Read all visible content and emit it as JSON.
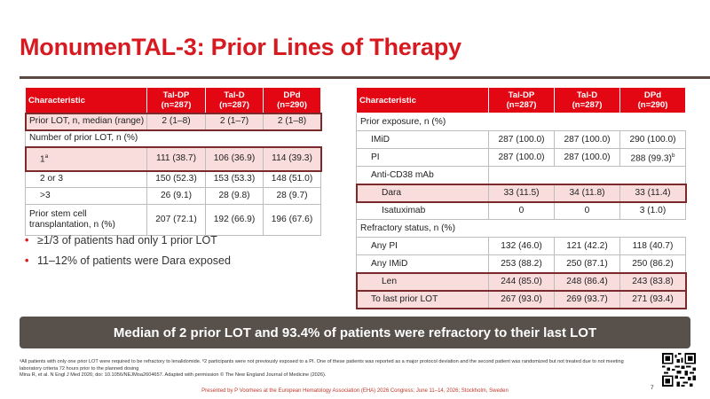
{
  "title": "MonumenTAL-3: Prior Lines of Therapy",
  "left_table": {
    "headers": [
      "Characteristic",
      "Tal-DP\n(n=287)",
      "Tal-D\n(n=287)",
      "DPd\n(n=290)"
    ],
    "rows": [
      {
        "label": "Prior LOT, n, median (range)",
        "values": [
          "2 (1–8)",
          "2 (1–7)",
          "2 (1–8)"
        ]
      },
      {
        "label": "Number of prior LOT, n (%)"
      },
      {
        "label": "1",
        "sup": "a",
        "values": [
          "111 (38.7)",
          "106 (36.9)",
          "114 (39.3)"
        ]
      },
      {
        "label": "2 or 3",
        "values": [
          "150 (52.3)",
          "153 (53.3)",
          "148 (51.0)"
        ]
      },
      {
        "label": ">3",
        "values": [
          "26 (9.1)",
          "28 (9.8)",
          "28 (9.7)"
        ]
      },
      {
        "label": "Prior stem cell\ntransplantation, n (%)",
        "values": [
          "207 (72.1)",
          "192 (66.9)",
          "196 (67.6)"
        ]
      }
    ]
  },
  "right_table": {
    "headers": [
      "Characteristic",
      "Tal-DP\n(n=287)",
      "Tal-D\n(n=287)",
      "DPd\n(n=290)"
    ],
    "rows": [
      {
        "label": "Prior exposure, n (%)"
      },
      {
        "label": "IMiD",
        "values": [
          "287 (100.0)",
          "287 (100.0)",
          "290 (100.0)"
        ]
      },
      {
        "label": "PI",
        "values": [
          "287 (100.0)",
          "287 (100.0)",
          "288 (99.3)"
        ],
        "sup_last": "b"
      },
      {
        "label": "Anti-CD38 mAb"
      },
      {
        "label": "Dara",
        "values": [
          "33 (11.5)",
          "34 (11.8)",
          "33 (11.4)"
        ]
      },
      {
        "label": "Isatuximab",
        "values": [
          "0",
          "0",
          "3 (1.0)"
        ]
      },
      {
        "label": "Refractory status, n (%)"
      },
      {
        "label": "Any PI",
        "values": [
          "132 (46.0)",
          "121 (42.2)",
          "118 (40.7)"
        ]
      },
      {
        "label": "Any IMiD",
        "values": [
          "253 (88.2)",
          "250 (87.1)",
          "250 (86.2)"
        ]
      },
      {
        "label": "Len",
        "values": [
          "244 (85.0)",
          "248 (86.4)",
          "243 (83.8)"
        ]
      },
      {
        "label": "To last prior LOT",
        "values": [
          "267 (93.0)",
          "269 (93.7)",
          "271 (93.4)"
        ]
      }
    ]
  },
  "bullets": [
    "≥1/3 of patients had only 1 prior LOT",
    "11–12% of patients were Dara exposed"
  ],
  "banner": "Median of 2 prior LOT and 93.4% of patients were refractory to their last LOT",
  "footnote_1": "ᵃAll patients with only one prior LOT were required to be refractory to lenalidomide. ᵇ2 participants were not previously exposed to a PI. One of these patients was reported as a major protocol deviation and the second patient was randomized but not treated due to not meeting laboratory criteria 72 hours prior to the planned dosing",
  "footnote_2": "Mina R, et al. N Engl J Med 2026; doi: 10.1056/NEJMoa2604657. Adapted with permission © The New England Journal of Medicine (2026).",
  "presented_by": "Presented by P Voorhees at the European Hematology Association (EHA) 2026 Congress; June 11–14, 2026; Stockholm, Sweden",
  "page_number": "7",
  "colors": {
    "accent": "#d71920",
    "header_bg": "#e30613",
    "highlight": "#f9dcdc",
    "banner_bg": "#58504a"
  }
}
